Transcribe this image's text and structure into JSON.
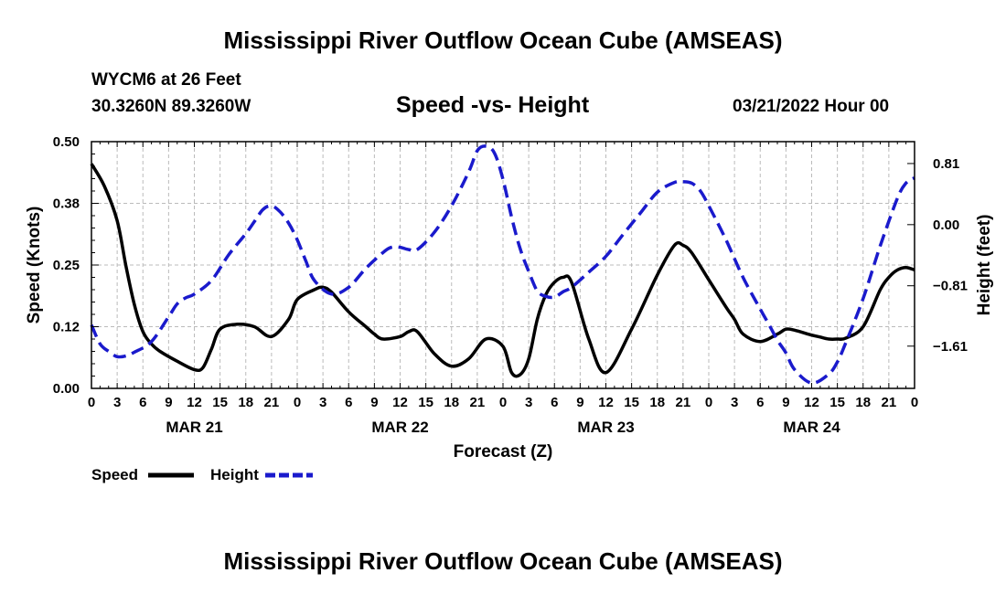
{
  "header": {
    "title": "Mississippi River Outflow Ocean Cube (AMSEAS)",
    "station": "WYCM6 at 26 Feet",
    "coords": "30.3260N  89.3260W",
    "subtitle": "Speed -vs- Height",
    "datetime": "03/21/2022 Hour 00"
  },
  "legend": {
    "speed_label": "Speed",
    "height_label": "Height"
  },
  "footer": {
    "title": "Mississippi River Outflow Ocean Cube (AMSEAS)"
  },
  "colors": {
    "speed": "#000000",
    "height": "#1a1acc",
    "grid": "#bbbbbb"
  },
  "chart_data": {
    "type": "line",
    "title": "Speed -vs- Height",
    "xlabel": "Forecast (Z)",
    "ylabel": "Speed (Knots)",
    "y2label": "Height (feet)",
    "xlim": [
      0,
      96
    ],
    "ylim": [
      0,
      0.5
    ],
    "y2lim": [
      -2.17,
      1.1
    ],
    "x_ticks": [
      0,
      3,
      6,
      9,
      12,
      15,
      18,
      21,
      24,
      27,
      30,
      33,
      36,
      39,
      42,
      45,
      48,
      51,
      54,
      57,
      60,
      63,
      66,
      69,
      72,
      75,
      78,
      81,
      84,
      87,
      90,
      93,
      96
    ],
    "x_tick_labels": [
      "0",
      "3",
      "6",
      "9",
      "12",
      "15",
      "18",
      "21",
      "0",
      "3",
      "6",
      "9",
      "12",
      "15",
      "18",
      "21",
      "0",
      "3",
      "6",
      "9",
      "12",
      "15",
      "18",
      "21",
      "0",
      "3",
      "6",
      "9",
      "12",
      "15",
      "18",
      "21",
      "0"
    ],
    "y_ticks": [
      0,
      0.125,
      0.25,
      0.375,
      0.5
    ],
    "y_tick_labels": [
      "0.00",
      "0.12",
      "0.25",
      "0.38",
      "0.50"
    ],
    "y2_ticks": [
      0.81,
      0,
      -0.81,
      -1.61
    ],
    "y2_tick_labels": [
      "0.81",
      "0.00",
      "−0.81",
      "−1.61"
    ],
    "date_labels": [
      {
        "x": 12,
        "label": "MAR 21"
      },
      {
        "x": 36,
        "label": "MAR 22"
      },
      {
        "x": 60,
        "label": "MAR 23"
      },
      {
        "x": 84,
        "label": "MAR 24"
      }
    ],
    "series": [
      {
        "name": "Speed",
        "axis": "left",
        "style": "solid",
        "x": [
          0,
          1.5,
          3,
          4,
          5,
          6,
          7,
          8,
          10,
          12,
          13,
          14,
          15,
          17,
          19,
          21,
          23,
          24,
          26,
          27,
          28,
          30,
          32,
          33,
          34,
          36,
          37,
          38,
          40,
          42,
          44,
          46,
          48,
          49,
          50,
          51,
          52,
          53,
          54,
          55,
          56,
          58,
          60,
          63,
          66,
          68,
          69,
          70,
          72,
          74,
          75,
          76,
          78,
          80,
          81,
          82,
          84,
          85,
          86,
          87,
          88,
          90,
          92,
          93,
          94,
          95,
          96
        ],
        "values": [
          0.455,
          0.41,
          0.34,
          0.25,
          0.17,
          0.115,
          0.09,
          0.075,
          0.055,
          0.038,
          0.042,
          0.08,
          0.12,
          0.13,
          0.125,
          0.105,
          0.14,
          0.18,
          0.2,
          0.205,
          0.195,
          0.155,
          0.125,
          0.11,
          0.1,
          0.105,
          0.115,
          0.115,
          0.07,
          0.045,
          0.06,
          0.1,
          0.085,
          0.032,
          0.028,
          0.06,
          0.14,
          0.19,
          0.215,
          0.225,
          0.215,
          0.1,
          0.032,
          0.12,
          0.23,
          0.29,
          0.29,
          0.275,
          0.22,
          0.165,
          0.14,
          0.11,
          0.095,
          0.11,
          0.12,
          0.118,
          0.108,
          0.104,
          0.1,
          0.1,
          0.102,
          0.125,
          0.2,
          0.225,
          0.24,
          0.245,
          0.24
        ]
      },
      {
        "name": "Height",
        "axis": "right",
        "style": "dashed",
        "x": [
          0,
          1,
          2,
          3,
          4,
          5,
          7,
          9,
          10,
          11,
          12,
          14,
          16,
          18,
          19,
          20,
          21,
          22,
          23,
          24,
          25,
          26,
          28,
          30,
          32,
          34,
          35,
          36,
          37,
          38,
          40,
          42,
          44,
          45,
          46,
          47,
          48,
          49,
          50,
          51,
          52,
          53,
          54,
          55,
          56,
          58,
          60,
          62,
          64,
          66,
          68,
          69,
          70,
          71,
          72,
          74,
          76,
          78,
          79,
          80,
          81,
          82,
          84,
          86,
          87,
          88,
          90,
          92,
          94,
          95,
          96
        ],
        "values": [
          -1.33,
          -1.58,
          -1.68,
          -1.75,
          -1.74,
          -1.69,
          -1.55,
          -1.22,
          -1.05,
          -0.97,
          -0.92,
          -0.74,
          -0.4,
          -0.12,
          0.04,
          0.2,
          0.25,
          0.17,
          0.02,
          -0.2,
          -0.48,
          -0.74,
          -0.92,
          -0.83,
          -0.58,
          -0.37,
          -0.3,
          -0.3,
          -0.33,
          -0.33,
          -0.1,
          0.25,
          0.7,
          0.98,
          1.04,
          0.95,
          0.6,
          0.1,
          -0.32,
          -0.62,
          -0.88,
          -0.95,
          -0.96,
          -0.89,
          -0.83,
          -0.63,
          -0.42,
          -0.13,
          0.15,
          0.43,
          0.56,
          0.57,
          0.55,
          0.45,
          0.25,
          -0.2,
          -0.7,
          -1.12,
          -1.32,
          -1.53,
          -1.7,
          -1.92,
          -2.1,
          -1.98,
          -1.82,
          -1.56,
          -0.98,
          -0.28,
          0.35,
          0.55,
          0.62
        ]
      }
    ]
  }
}
